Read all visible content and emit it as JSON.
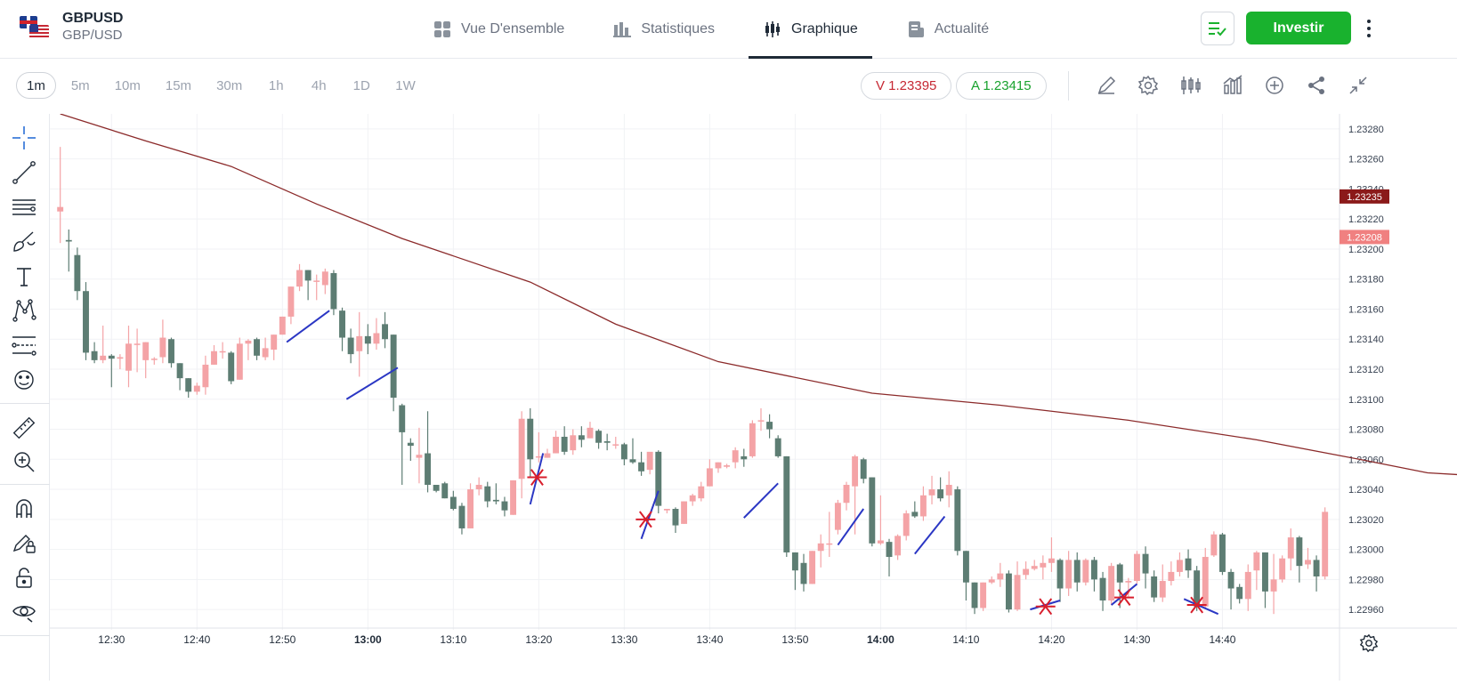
{
  "header": {
    "symbol": "GBPUSD",
    "symbol_sub": "GBP/USD",
    "tabs": [
      {
        "label": "Vue D'ensemble",
        "icon": "grid-icon",
        "active": false
      },
      {
        "label": "Statistiques",
        "icon": "bar-stats-icon",
        "active": false
      },
      {
        "label": "Graphique",
        "icon": "candles-icon",
        "active": true
      },
      {
        "label": "Actualité",
        "icon": "news-icon",
        "active": false
      }
    ],
    "invest_label": "Investir",
    "accent_color": "#19b22e"
  },
  "toolbar": {
    "timeframes": [
      "1m",
      "5m",
      "10m",
      "15m",
      "30m",
      "1h",
      "4h",
      "1D",
      "1W"
    ],
    "active_timeframe": "1m",
    "sell_quote": "V 1.23395",
    "buy_quote": "A 1.23415",
    "icons": [
      "pencil-icon",
      "gear-icon",
      "candle-type-icon",
      "indicators-icon",
      "add-circle-icon",
      "share-icon",
      "collapse-icon"
    ]
  },
  "sidebar": {
    "tools": [
      "crosshair-icon",
      "trendline-icon",
      "parallel-lines-icon",
      "brush-icon",
      "text-icon",
      "pattern-icon",
      "measure-lines-icon",
      "emoji-icon",
      "ruler-icon",
      "zoom-in-icon",
      "magnet-icon",
      "lock-pencil-icon",
      "unlock-icon",
      "eye-icon"
    ]
  },
  "chart_data": {
    "type": "candlestick",
    "ma_color": "#8b2a2a",
    "up_color": "#f4a3a6",
    "down_color": "#5d7d73",
    "price_ticks": [
      "1.23280",
      "1.23260",
      "1.23240",
      "1.23220",
      "1.23200",
      "1.23180",
      "1.23160",
      "1.23140",
      "1.23120",
      "1.23100",
      "1.23080",
      "1.23060",
      "1.23040",
      "1.23020",
      "1.23000",
      "1.22980",
      "1.22960"
    ],
    "price_badges": [
      {
        "label": "1.23235",
        "value": 1.23235,
        "color": "#8b1a1a"
      },
      {
        "label": "1.23208",
        "value": 1.23208,
        "color": "#f08080"
      }
    ],
    "time_ticks": [
      {
        "label": "12:30",
        "bold": false
      },
      {
        "label": "12:40",
        "bold": false
      },
      {
        "label": "12:50",
        "bold": false
      },
      {
        "label": "13:00",
        "bold": true
      },
      {
        "label": "13:10",
        "bold": false
      },
      {
        "label": "13:20",
        "bold": false
      },
      {
        "label": "13:30",
        "bold": false
      },
      {
        "label": "13:40",
        "bold": false
      },
      {
        "label": "13:50",
        "bold": false
      },
      {
        "label": "14:00",
        "bold": true
      },
      {
        "label": "14:10",
        "bold": false
      },
      {
        "label": "14:20",
        "bold": false
      },
      {
        "label": "14:30",
        "bold": false
      },
      {
        "label": "14:40",
        "bold": false
      }
    ],
    "ylim": [
      1.2295,
      1.2329
    ],
    "candles": [
      [
        1.23225,
        1.23228,
        1.23268,
        1.23204
      ],
      [
        1.23206,
        1.23205,
        1.23213,
        1.23185
      ],
      [
        1.23196,
        1.23172,
        1.23201,
        1.23166
      ],
      [
        1.23172,
        1.23131,
        1.23178,
        1.23126
      ],
      [
        1.23132,
        1.23126,
        1.23138,
        1.23124
      ],
      [
        1.23126,
        1.23129,
        1.23149,
        1.23124
      ],
      [
        1.23129,
        1.23127,
        1.2313,
        1.23108
      ],
      [
        1.23127,
        1.23128,
        1.2313,
        1.2312
      ],
      [
        1.23119,
        1.23137,
        1.23149,
        1.23108
      ],
      [
        1.23137,
        1.23137,
        1.23147,
        1.23118
      ],
      [
        1.23126,
        1.23138,
        1.23138,
        1.23114
      ],
      [
        1.23127,
        1.23127,
        1.23128,
        1.23123
      ],
      [
        1.23128,
        1.23141,
        1.23153,
        1.23124
      ],
      [
        1.2314,
        1.23124,
        1.23141,
        1.23121
      ],
      [
        1.23124,
        1.23114,
        1.23124,
        1.23106
      ],
      [
        1.23114,
        1.23105,
        1.23114,
        1.23101
      ],
      [
        1.23105,
        1.23109,
        1.23111,
        1.23103
      ],
      [
        1.23108,
        1.23123,
        1.23129,
        1.23103
      ],
      [
        1.23123,
        1.23132,
        1.23136,
        1.23123
      ],
      [
        1.23132,
        1.23132,
        1.23138,
        1.23127
      ],
      [
        1.23131,
        1.23112,
        1.23132,
        1.2311
      ],
      [
        1.23113,
        1.23137,
        1.23141,
        1.23113
      ],
      [
        1.23137,
        1.23139,
        1.2314,
        1.23126
      ],
      [
        1.2314,
        1.23129,
        1.23141,
        1.23126
      ],
      [
        1.23128,
        1.23134,
        1.23141,
        1.23126
      ],
      [
        1.23133,
        1.23143,
        1.23143,
        1.23126
      ],
      [
        1.23143,
        1.23155,
        1.23155,
        1.23143
      ],
      [
        1.23155,
        1.23175,
        1.23175,
        1.2315
      ],
      [
        1.23175,
        1.23186,
        1.2319,
        1.23172
      ],
      [
        1.23186,
        1.23179,
        1.23186,
        1.23166
      ],
      [
        1.23179,
        1.23179,
        1.23183,
        1.23166
      ],
      [
        1.23176,
        1.23185,
        1.23187,
        1.2317
      ],
      [
        1.23184,
        1.2316,
        1.23186,
        1.23156
      ],
      [
        1.23159,
        1.23141,
        1.23161,
        1.23132
      ],
      [
        1.23141,
        1.2313,
        1.23147,
        1.23124
      ],
      [
        1.23132,
        1.23142,
        1.23158,
        1.23115
      ],
      [
        1.23142,
        1.23137,
        1.2315,
        1.2313
      ],
      [
        1.23137,
        1.23144,
        1.23154,
        1.23133
      ],
      [
        1.2315,
        1.2314,
        1.23158,
        1.23134
      ],
      [
        1.23143,
        1.23101,
        1.23143,
        1.23092
      ],
      [
        1.23096,
        1.23078,
        1.23097,
        1.23043
      ],
      [
        1.23071,
        1.23069,
        1.23074,
        1.23059
      ],
      [
        1.23061,
        1.23063,
        1.23081,
        1.23044
      ],
      [
        1.23064,
        1.23043,
        1.23092,
        1.23038
      ],
      [
        1.23043,
        1.23039,
        1.23042,
        1.23038
      ],
      [
        1.23044,
        1.23034,
        1.23045,
        1.23034
      ],
      [
        1.23035,
        1.23027,
        1.23039,
        1.23026
      ],
      [
        1.23029,
        1.23014,
        1.23031,
        1.2301
      ],
      [
        1.23014,
        1.2304,
        1.23044,
        1.23014
      ],
      [
        1.2304,
        1.23043,
        1.23048,
        1.23036
      ],
      [
        1.23042,
        1.23032,
        1.23045,
        1.23028
      ],
      [
        1.23033,
        1.23032,
        1.23044,
        1.2303
      ],
      [
        1.23032,
        1.23026,
        1.23035,
        1.23022
      ],
      [
        1.23023,
        1.23046,
        1.23046,
        1.23023
      ],
      [
        1.23047,
        1.23087,
        1.23092,
        1.23034
      ],
      [
        1.23087,
        1.2306,
        1.23094,
        1.23048
      ],
      [
        1.23062,
        1.23062,
        1.23078,
        1.23058
      ],
      [
        1.23061,
        1.23064,
        1.23067,
        1.23061
      ],
      [
        1.23064,
        1.23075,
        1.23079,
        1.23064
      ],
      [
        1.23075,
        1.23065,
        1.23082,
        1.23063
      ],
      [
        1.23066,
        1.23076,
        1.2308,
        1.23063
      ],
      [
        1.23076,
        1.23073,
        1.23082,
        1.23068
      ],
      [
        1.23074,
        1.23081,
        1.23085,
        1.23074
      ],
      [
        1.23079,
        1.23071,
        1.2308,
        1.23067
      ],
      [
        1.23072,
        1.23071,
        1.23077,
        1.23066
      ],
      [
        1.2307,
        1.2307,
        1.23075,
        1.23067
      ],
      [
        1.2307,
        1.2306,
        1.23071,
        1.23056
      ],
      [
        1.2306,
        1.23058,
        1.23074,
        1.23057
      ],
      [
        1.23058,
        1.23052,
        1.23065,
        1.23049
      ],
      [
        1.23053,
        1.23065,
        1.23064,
        1.2305
      ],
      [
        1.23065,
        1.23029,
        1.23066,
        1.23024
      ],
      [
        1.23026,
        1.23027,
        1.23027,
        1.23024
      ],
      [
        1.23027,
        1.23016,
        1.23028,
        1.23011
      ],
      [
        1.23017,
        1.23032,
        1.23032,
        1.23017
      ],
      [
        1.23032,
        1.23036,
        1.23037,
        1.23029
      ],
      [
        1.23034,
        1.23042,
        1.23045,
        1.23032
      ],
      [
        1.23042,
        1.23054,
        1.2306,
        1.23042
      ],
      [
        1.23054,
        1.23058,
        1.23058,
        1.23051
      ],
      [
        1.23055,
        1.23056,
        1.23057,
        1.23054
      ],
      [
        1.23058,
        1.23066,
        1.23068,
        1.23054
      ],
      [
        1.23062,
        1.2306,
        1.23067,
        1.23055
      ],
      [
        1.23062,
        1.23084,
        1.23086,
        1.23061
      ],
      [
        1.23086,
        1.23086,
        1.23094,
        1.23079
      ],
      [
        1.23085,
        1.2308,
        1.2309,
        1.23074
      ],
      [
        1.23074,
        1.23062,
        1.23076,
        1.23061
      ],
      [
        1.23062,
        1.22998,
        1.23062,
        1.22995
      ],
      [
        1.22998,
        1.22986,
        1.22998,
        1.22973
      ],
      [
        1.22991,
        1.22977,
        1.22997,
        1.22972
      ],
      [
        1.22977,
        1.22999,
        1.22999,
        1.22977
      ],
      [
        1.22999,
        1.23004,
        1.2301,
        1.22988
      ],
      [
        1.23004,
        1.23004,
        1.23025,
        1.22995
      ],
      [
        1.23013,
        1.23031,
        1.23033,
        1.2301
      ],
      [
        1.23031,
        1.23043,
        1.23045,
        1.23026
      ],
      [
        1.23042,
        1.23062,
        1.23063,
        1.2301
      ],
      [
        1.2306,
        1.23047,
        1.23061,
        1.23044
      ],
      [
        1.23048,
        1.23004,
        1.23048,
        1.23002
      ],
      [
        1.23004,
        1.23006,
        1.23036,
        1.23003
      ],
      [
        1.23005,
        1.22995,
        1.23007,
        1.22982
      ],
      [
        1.22996,
        1.23009,
        1.2301,
        1.22993
      ],
      [
        1.23009,
        1.23024,
        1.23026,
        1.23006
      ],
      [
        1.23025,
        1.23022,
        1.23032,
        1.23021
      ],
      [
        1.23022,
        1.23036,
        1.23042,
        1.23019
      ],
      [
        1.23036,
        1.2304,
        1.23049,
        1.2303
      ],
      [
        1.2304,
        1.23034,
        1.23048,
        1.23032
      ],
      [
        1.23036,
        1.23043,
        1.23052,
        1.23028
      ],
      [
        1.2304,
        1.22999,
        1.23042,
        1.22996
      ],
      [
        1.22999,
        1.22978,
        1.22999,
        1.22966
      ],
      [
        1.22978,
        1.22961,
        1.22978,
        1.22957
      ],
      [
        1.22961,
        1.22978,
        1.22978,
        1.22959
      ],
      [
        1.22978,
        1.2298,
        1.22982,
        1.22977
      ],
      [
        1.2298,
        1.22984,
        1.22991,
        1.22975
      ],
      [
        1.22984,
        1.2296,
        1.22986,
        1.22958
      ],
      [
        1.2296,
        1.22983,
        1.22992,
        1.22959
      ],
      [
        1.22983,
        1.22987,
        1.22992,
        1.2298
      ],
      [
        1.22987,
        1.22989,
        1.22993,
        1.22986
      ],
      [
        1.22988,
        1.22991,
        1.22996,
        1.2298
      ],
      [
        1.22991,
        1.22994,
        1.23008,
        1.22985
      ],
      [
        1.22993,
        1.22974,
        1.22994,
        1.22965
      ],
      [
        1.22974,
        1.22993,
        1.22999,
        1.22969
      ],
      [
        1.22993,
        1.22978,
        1.22998,
        1.22972
      ],
      [
        1.22978,
        1.22993,
        1.22994,
        1.22976
      ],
      [
        1.22993,
        1.2298,
        1.22995,
        1.22972
      ],
      [
        1.22981,
        1.22966,
        1.22985,
        1.22959
      ],
      [
        1.22966,
        1.22989,
        1.22991,
        1.22963
      ],
      [
        1.2299,
        1.22978,
        1.22991,
        1.22961
      ],
      [
        1.22978,
        1.22979,
        1.22981,
        1.22968
      ],
      [
        1.22979,
        1.22997,
        1.22999,
        1.22977
      ],
      [
        1.22997,
        1.22984,
        1.23002,
        1.22974
      ],
      [
        1.22982,
        1.22968,
        1.22986,
        1.22965
      ],
      [
        1.22968,
        1.22979,
        1.2299,
        1.22965
      ],
      [
        1.22979,
        1.22985,
        1.22992,
        1.22976
      ],
      [
        1.22985,
        1.22993,
        1.22998,
        1.22982
      ],
      [
        1.22994,
        1.22986,
        1.23,
        1.22981
      ],
      [
        1.22986,
        1.22962,
        1.22989,
        1.22959
      ],
      [
        1.22962,
        1.22995,
        1.23001,
        1.22961
      ],
      [
        1.22996,
        1.2301,
        1.23012,
        1.22995
      ],
      [
        1.2301,
        1.22985,
        1.23011,
        1.22983
      ],
      [
        1.22985,
        1.22974,
        1.22987,
        1.2296
      ],
      [
        1.22975,
        1.22967,
        1.22977,
        1.22964
      ],
      [
        1.22967,
        1.22985,
        1.2299,
        1.22959
      ],
      [
        1.22986,
        1.22998,
        1.22999,
        1.22973
      ],
      [
        1.22998,
        1.22972,
        1.22998,
        1.22961
      ],
      [
        1.22972,
        1.2298,
        1.22997,
        1.22957
      ],
      [
        1.2298,
        1.22994,
        1.22996,
        1.22978
      ],
      [
        1.22994,
        1.23008,
        1.23014,
        1.22986
      ],
      [
        1.23008,
        1.22989,
        1.23009,
        1.22978
      ],
      [
        1.2299,
        1.22993,
        1.23001,
        1.22987
      ],
      [
        1.22993,
        1.22982,
        1.22996,
        1.22972
      ],
      [
        1.22982,
        1.23025,
        1.23028,
        1.2298
      ]
    ],
    "moving_average": [
      [
        0,
        1.2329
      ],
      [
        10,
        1.23272
      ],
      [
        20,
        1.23255
      ],
      [
        30,
        1.2323
      ],
      [
        40,
        1.23207
      ],
      [
        55,
        1.23178
      ],
      [
        65,
        1.2315
      ],
      [
        77,
        1.23125
      ],
      [
        95,
        1.23104
      ],
      [
        110,
        1.23096
      ],
      [
        125,
        1.23086
      ],
      [
        140,
        1.23073
      ],
      [
        152,
        1.2306
      ],
      [
        160,
        1.23051
      ],
      [
        172,
        1.23047
      ],
      [
        183,
        1.23044
      ],
      [
        193,
        1.23043
      ],
      [
        203,
        1.23038
      ],
      [
        212,
        1.23032
      ],
      [
        222,
        1.23022
      ],
      [
        230,
        1.23012
      ],
      [
        240,
        1.23002
      ],
      [
        250,
        1.23
      ]
    ],
    "annotations": [
      {
        "type": "line",
        "color": "#2b37c4",
        "x1": 26.5,
        "y1": 1.23138,
        "x2": 31.5,
        "y2": 1.23159
      },
      {
        "type": "line",
        "color": "#2b37c4",
        "x1": 33.5,
        "y1": 1.231,
        "x2": 39.5,
        "y2": 1.23121
      },
      {
        "type": "line",
        "color": "#2b37c4",
        "x1": 55.0,
        "y1": 1.2303,
        "x2": 56.5,
        "y2": 1.23064
      },
      {
        "type": "cross",
        "color": "#d81e2c",
        "x": 55.8,
        "y": 1.23048
      },
      {
        "type": "line",
        "color": "#2b37c4",
        "x1": 68.0,
        "y1": 1.23007,
        "x2": 70.0,
        "y2": 1.23039
      },
      {
        "type": "cross",
        "color": "#d81e2c",
        "x": 68.5,
        "y": 1.2302
      },
      {
        "type": "line",
        "color": "#2b37c4",
        "x1": 80.0,
        "y1": 1.23021,
        "x2": 84.0,
        "y2": 1.23044
      },
      {
        "type": "line",
        "color": "#2b37c4",
        "x1": 91.0,
        "y1": 1.23003,
        "x2": 94.0,
        "y2": 1.23027
      },
      {
        "type": "line",
        "color": "#2b37c4",
        "x1": 100.0,
        "y1": 1.22997,
        "x2": 103.5,
        "y2": 1.23022
      },
      {
        "type": "line",
        "color": "#2b37c4",
        "x1": 113.5,
        "y1": 1.2296,
        "x2": 117.0,
        "y2": 1.22966
      },
      {
        "type": "cross",
        "color": "#d81e2c",
        "x": 115.3,
        "y": 1.22962
      },
      {
        "type": "line",
        "color": "#2b37c4",
        "x1": 123.0,
        "y1": 1.22963,
        "x2": 126.0,
        "y2": 1.22977
      },
      {
        "type": "cross",
        "color": "#d81e2c",
        "x": 124.5,
        "y": 1.22968
      },
      {
        "type": "line",
        "color": "#2b37c4",
        "x1": 131.5,
        "y1": 1.22967,
        "x2": 135.5,
        "y2": 1.22957
      },
      {
        "type": "cross",
        "color": "#d81e2c",
        "x": 133.0,
        "y": 1.22963
      }
    ]
  }
}
